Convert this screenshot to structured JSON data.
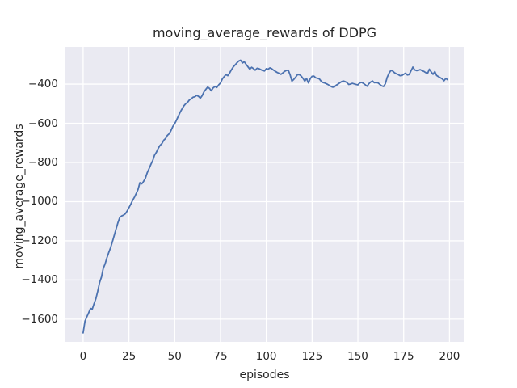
{
  "figure": {
    "background": "#ffffff"
  },
  "chart_data": {
    "type": "line",
    "title": "moving_average_rewards of DDPG",
    "xlabel": "episodes",
    "ylabel": "moving_average_rewards",
    "xticks": [
      0,
      25,
      50,
      75,
      100,
      125,
      150,
      175,
      200
    ],
    "yticks": [
      -400,
      -600,
      -800,
      -1000,
      -1200,
      -1400,
      -1600
    ],
    "xlim": [
      -10.1,
      208.2
    ],
    "ylim": [
      -1716,
      -210
    ],
    "grid": true,
    "legend": "none",
    "style": {
      "plot_background": "#EAEAF2",
      "grid_color": "#FFFFFF",
      "line_color": "#4C72B0",
      "text_color": "#262626"
    },
    "series": [
      {
        "name": "moving_average_rewards",
        "x_start": 0,
        "x_step": 1,
        "values": [
          -1670,
          -1610,
          -1589,
          -1568,
          -1545,
          -1549,
          -1520,
          -1494,
          -1457,
          -1413,
          -1385,
          -1341,
          -1318,
          -1286,
          -1260,
          -1235,
          -1204,
          -1172,
          -1139,
          -1107,
          -1080,
          -1073,
          -1069,
          -1062,
          -1049,
          -1031,
          -1013,
          -994,
          -978,
          -958,
          -938,
          -903,
          -909,
          -897,
          -880,
          -852,
          -832,
          -810,
          -790,
          -763,
          -748,
          -728,
          -713,
          -704,
          -686,
          -678,
          -662,
          -653,
          -637,
          -616,
          -602,
          -584,
          -563,
          -543,
          -527,
          -511,
          -500,
          -493,
          -481,
          -475,
          -467,
          -465,
          -457,
          -463,
          -472,
          -459,
          -439,
          -427,
          -415,
          -422,
          -434,
          -419,
          -412,
          -417,
          -404,
          -394,
          -374,
          -362,
          -351,
          -357,
          -343,
          -326,
          -312,
          -302,
          -291,
          -282,
          -278,
          -292,
          -286,
          -299,
          -312,
          -324,
          -314,
          -321,
          -329,
          -319,
          -321,
          -326,
          -331,
          -333,
          -321,
          -324,
          -317,
          -322,
          -329,
          -335,
          -341,
          -345,
          -350,
          -343,
          -335,
          -330,
          -329,
          -352,
          -385,
          -376,
          -365,
          -352,
          -351,
          -358,
          -370,
          -385,
          -371,
          -394,
          -372,
          -360,
          -359,
          -368,
          -370,
          -374,
          -386,
          -392,
          -395,
          -399,
          -404,
          -410,
          -415,
          -416,
          -407,
          -401,
          -394,
          -388,
          -384,
          -387,
          -392,
          -402,
          -400,
          -396,
          -399,
          -402,
          -404,
          -394,
          -391,
          -396,
          -403,
          -411,
          -398,
          -389,
          -384,
          -393,
          -392,
          -394,
          -402,
          -409,
          -412,
          -398,
          -365,
          -344,
          -330,
          -333,
          -342,
          -347,
          -351,
          -357,
          -356,
          -350,
          -344,
          -353,
          -351,
          -332,
          -313,
          -327,
          -331,
          -330,
          -326,
          -331,
          -335,
          -341,
          -346,
          -324,
          -337,
          -350,
          -336,
          -356,
          -362,
          -367,
          -373,
          -383,
          -371,
          -378
        ]
      }
    ]
  }
}
